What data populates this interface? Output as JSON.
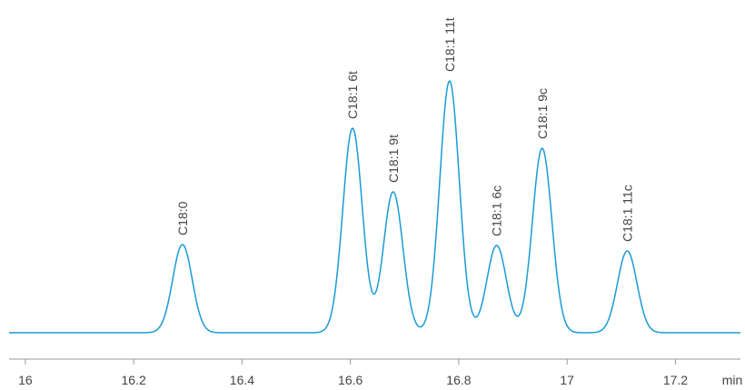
{
  "chart_data": {
    "type": "chromatogram",
    "categories": [
      "C18:0",
      "C18:1 6t",
      "C18:1 9t",
      "C18:1 11t",
      "C18:1 6c",
      "C18:1 9c",
      "C18:1 11c"
    ],
    "x": [
      16.29,
      16.604,
      16.679,
      16.783,
      16.87,
      16.954,
      17.111
    ],
    "values": [
      97,
      225,
      155,
      277,
      96,
      203,
      90
    ],
    "color": "#1a9ad6",
    "xlim": [
      15.97,
      17.32
    ],
    "ylim": [
      0,
      300
    ],
    "xticks": [
      16,
      16.2,
      16.4,
      16.6,
      16.8,
      17,
      17.2
    ],
    "x_unit": "min"
  }
}
